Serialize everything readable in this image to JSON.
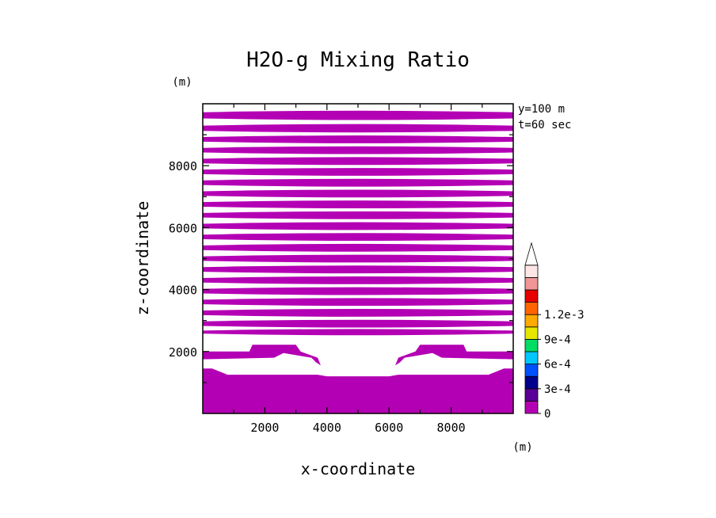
{
  "chart_data": {
    "type": "contour-filled",
    "title": "H2O-g Mixing Ratio",
    "xlabel": "x-coordinate",
    "ylabel": "z-coordinate",
    "x_unit": "(m)",
    "y_unit": "(m)",
    "xlim": [
      0,
      10000
    ],
    "ylim": [
      0,
      10000
    ],
    "xticks": [
      2000,
      4000,
      6000,
      8000
    ],
    "yticks": [
      2000,
      4000,
      6000,
      8000
    ],
    "xtick_labels": [
      "2000",
      "4000",
      "6000",
      "8000"
    ],
    "ytick_labels": [
      "2000",
      "4000",
      "6000",
      "8000"
    ],
    "annotations": [
      "y=100 m",
      "t=60 sec"
    ],
    "fill_color": "#b400b4",
    "contour_bands_m": [
      [
        9500,
        9750
      ],
      [
        9100,
        9320
      ],
      [
        8750,
        8950
      ],
      [
        8400,
        8600
      ],
      [
        8050,
        8250
      ],
      [
        7700,
        7900
      ],
      [
        7350,
        7550
      ],
      [
        7000,
        7200
      ],
      [
        6650,
        6850
      ],
      [
        6300,
        6500
      ],
      [
        5950,
        6150
      ],
      [
        5600,
        5800
      ],
      [
        5250,
        5450
      ],
      [
        4900,
        5100
      ],
      [
        4550,
        4750
      ],
      [
        4200,
        4400
      ],
      [
        3850,
        4050
      ],
      [
        3500,
        3700
      ],
      [
        3150,
        3350
      ],
      [
        2800,
        3000
      ],
      [
        2550,
        2700
      ]
    ],
    "lower_region_m": {
      "bottom_block_top": 1450,
      "valley_floor": 1200,
      "valley_x": [
        3700,
        6300
      ],
      "ridges": [
        {
          "x_start": 0,
          "x_end": 3200,
          "top": 2250,
          "bottom": 1750
        },
        {
          "x_start": 6800,
          "x_end": 10000,
          "top": 2250,
          "bottom": 1750
        }
      ]
    },
    "colorbar": {
      "levels": [
        0,
        0.00015,
        0.0003,
        0.00045,
        0.0006,
        0.00075,
        0.0009,
        0.00105,
        0.0012,
        0.00135
      ],
      "colors": [
        "#b400b4",
        "#5a0096",
        "#00008c",
        "#0050ff",
        "#00c8ff",
        "#00dc64",
        "#e6e600",
        "#ffaa00",
        "#ff6400",
        "#e60000",
        "#f09696",
        "#ffe6e6"
      ],
      "labels": [
        "0",
        "3e-4",
        "6e-4",
        "9e-4",
        "1.2e-3"
      ],
      "label_values": [
        0,
        0.0003,
        0.0006,
        0.0009,
        0.0012
      ],
      "extend": "max"
    }
  }
}
